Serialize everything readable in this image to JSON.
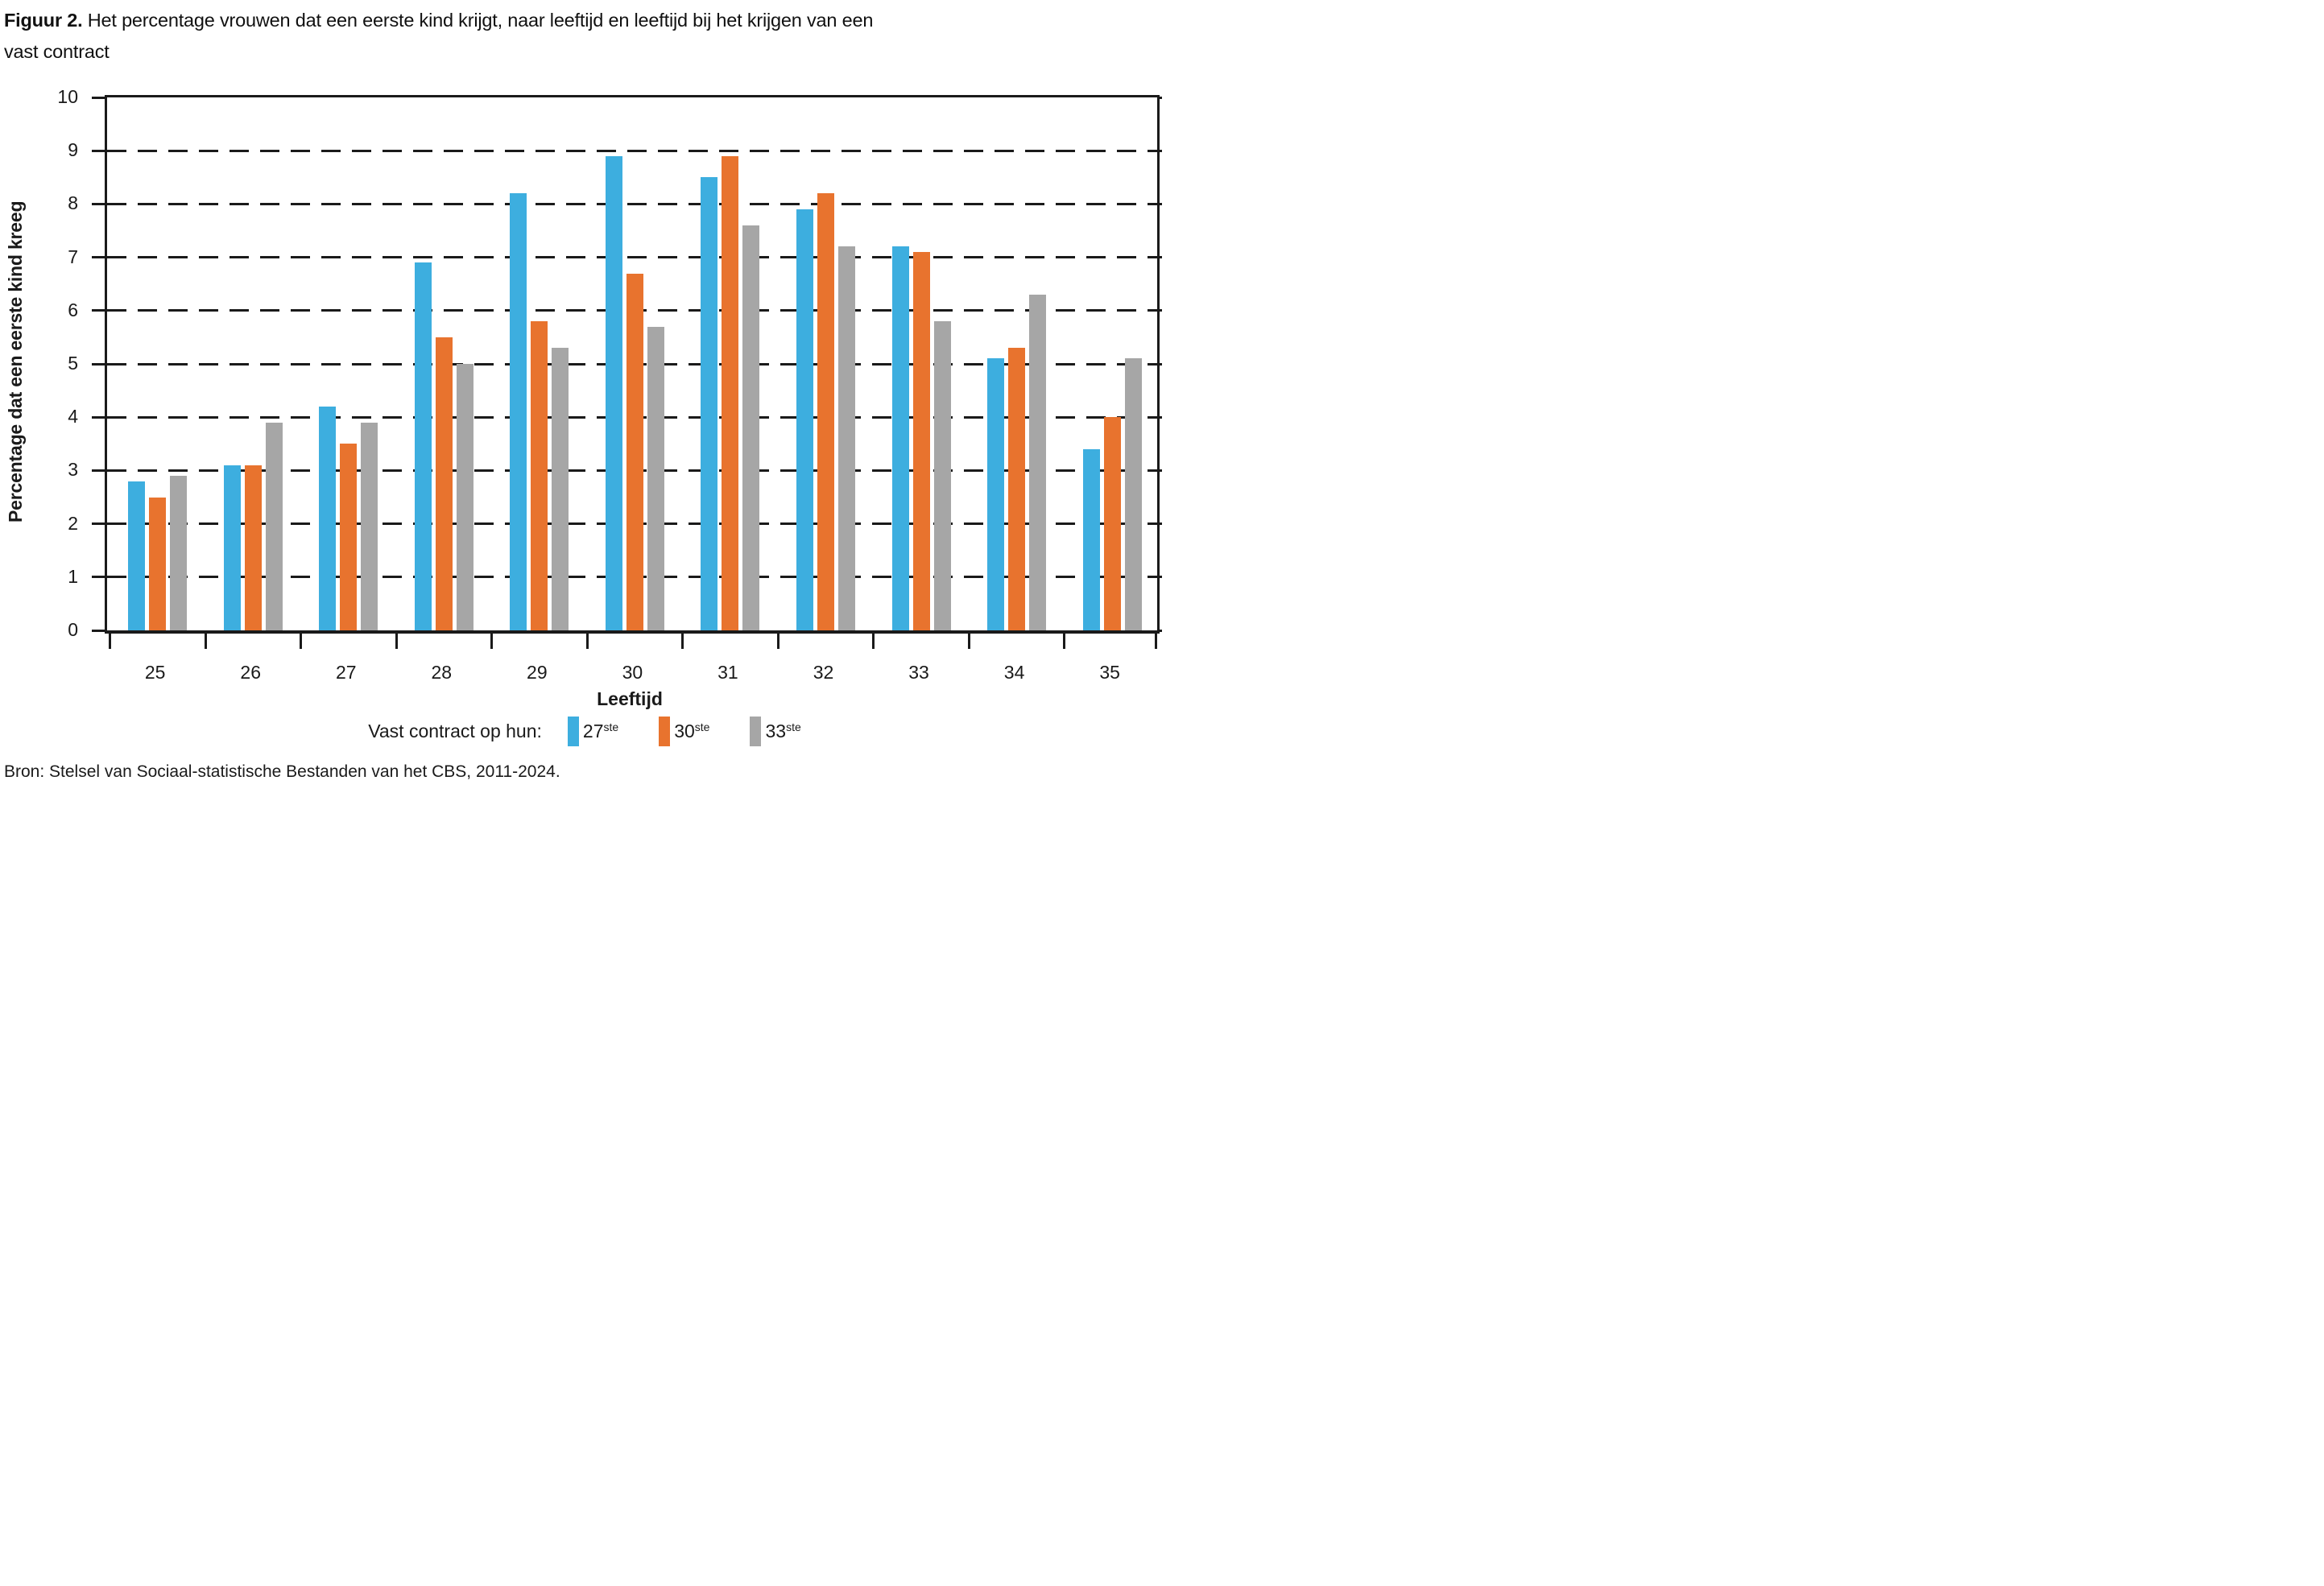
{
  "title": {
    "prefix": "Figuur 2.",
    "line1": "Het percentage vrouwen dat een eerste kind krijgt, naar leeftijd en leeftijd bij het krijgen van een",
    "line2": "vast contract"
  },
  "source": "Bron: Stelsel van Sociaal-statistische Bestanden van het CBS, 2011-2024.",
  "chart_data": {
    "type": "bar",
    "title": "Figuur 2. Het percentage vrouwen dat een eerste kind krijgt, naar leeftijd en leeftijd bij het krijgen van een vast contract",
    "categories": [
      "25",
      "26",
      "27",
      "28",
      "29",
      "30",
      "31",
      "32",
      "33",
      "34",
      "35"
    ],
    "series": [
      {
        "name": "27ste",
        "label_base": "27",
        "label_sup": "ste",
        "color": "#3DAEDF",
        "values": [
          2.8,
          3.1,
          4.2,
          6.9,
          8.2,
          8.9,
          8.5,
          7.9,
          7.2,
          5.1,
          3.4
        ]
      },
      {
        "name": "30ste",
        "label_base": "30",
        "label_sup": "ste",
        "color": "#E8732E",
        "values": [
          2.5,
          3.1,
          3.5,
          5.5,
          5.8,
          6.7,
          8.9,
          8.2,
          7.1,
          5.3,
          4.0
        ]
      },
      {
        "name": "33ste",
        "label_base": "33",
        "label_sup": "ste",
        "color": "#A6A6A6",
        "values": [
          2.9,
          3.9,
          3.9,
          5.0,
          5.3,
          5.7,
          7.6,
          7.2,
          5.8,
          6.3,
          5.1
        ]
      }
    ],
    "xlabel": "Leeftijd",
    "ylabel": "Percentage dat een eerste kind kreeg",
    "ylim": [
      0,
      10
    ],
    "ytick_step": 1,
    "yticks": [
      "0",
      "1",
      "2",
      "3",
      "4",
      "5",
      "6",
      "7",
      "8",
      "9",
      "10"
    ],
    "grid": "horizontal-dashed",
    "legend_label": "Vast contract op hun:",
    "legend_position": "bottom",
    "axis_color": "#1a1a1a"
  }
}
